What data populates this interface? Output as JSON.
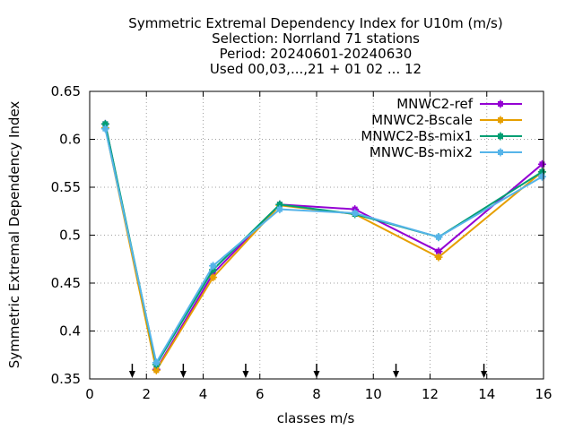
{
  "chart_data": {
    "type": "line",
    "title_lines": [
      "Symmetric Extremal Dependency Index  for U10m (m/s)",
      "Selection: Norrland     71 stations",
      "Period: 20240601-20240630",
      "Used 00,03,...,21 + 01 02 ... 12"
    ],
    "xlabel": "classes m/s",
    "ylabel": "Symmetric Extremal Dependency Index",
    "xlim": [
      0,
      16
    ],
    "ylim": [
      0.35,
      0.65
    ],
    "xticks": [
      0,
      2,
      4,
      6,
      8,
      10,
      12,
      14,
      16
    ],
    "xtick_labels": [
      "0",
      "2",
      "4",
      "6",
      "8",
      "10",
      "12",
      "14",
      "16"
    ],
    "yticks": [
      0.35,
      0.4,
      0.45,
      0.5,
      0.55,
      0.6,
      0.65
    ],
    "ytick_labels": [
      "0.35",
      "0.4",
      "0.45",
      "0.5",
      "0.55",
      "0.6",
      "0.65"
    ],
    "grid": true,
    "legend_position": "top-right",
    "arrow_markers_x": [
      1.5,
      3.3,
      5.5,
      8.0,
      10.8,
      13.9
    ],
    "x": [
      0.55,
      2.35,
      4.35,
      6.7,
      9.35,
      12.3,
      15.95
    ],
    "series": [
      {
        "name": "MNWC2-ref",
        "color": "#9400d3",
        "marker": "plus-square",
        "values": [
          0.616,
          0.36,
          0.46,
          0.532,
          0.527,
          0.483,
          0.574
        ]
      },
      {
        "name": "MNWC2-Bscale",
        "color": "#e69f00",
        "marker": "plus-square",
        "values": [
          0.612,
          0.359,
          0.456,
          0.531,
          0.522,
          0.477,
          0.566
        ]
      },
      {
        "name": "MNWC2-Bs-mix1",
        "color": "#009e73",
        "marker": "plus-square",
        "values": [
          0.616,
          0.365,
          0.464,
          0.532,
          0.522,
          0.498,
          0.566
        ]
      },
      {
        "name": "MNWC-Bs-mix2",
        "color": "#56b4e9",
        "marker": "plus-square",
        "values": [
          0.611,
          0.367,
          0.468,
          0.527,
          0.523,
          0.498,
          0.561
        ]
      }
    ]
  }
}
